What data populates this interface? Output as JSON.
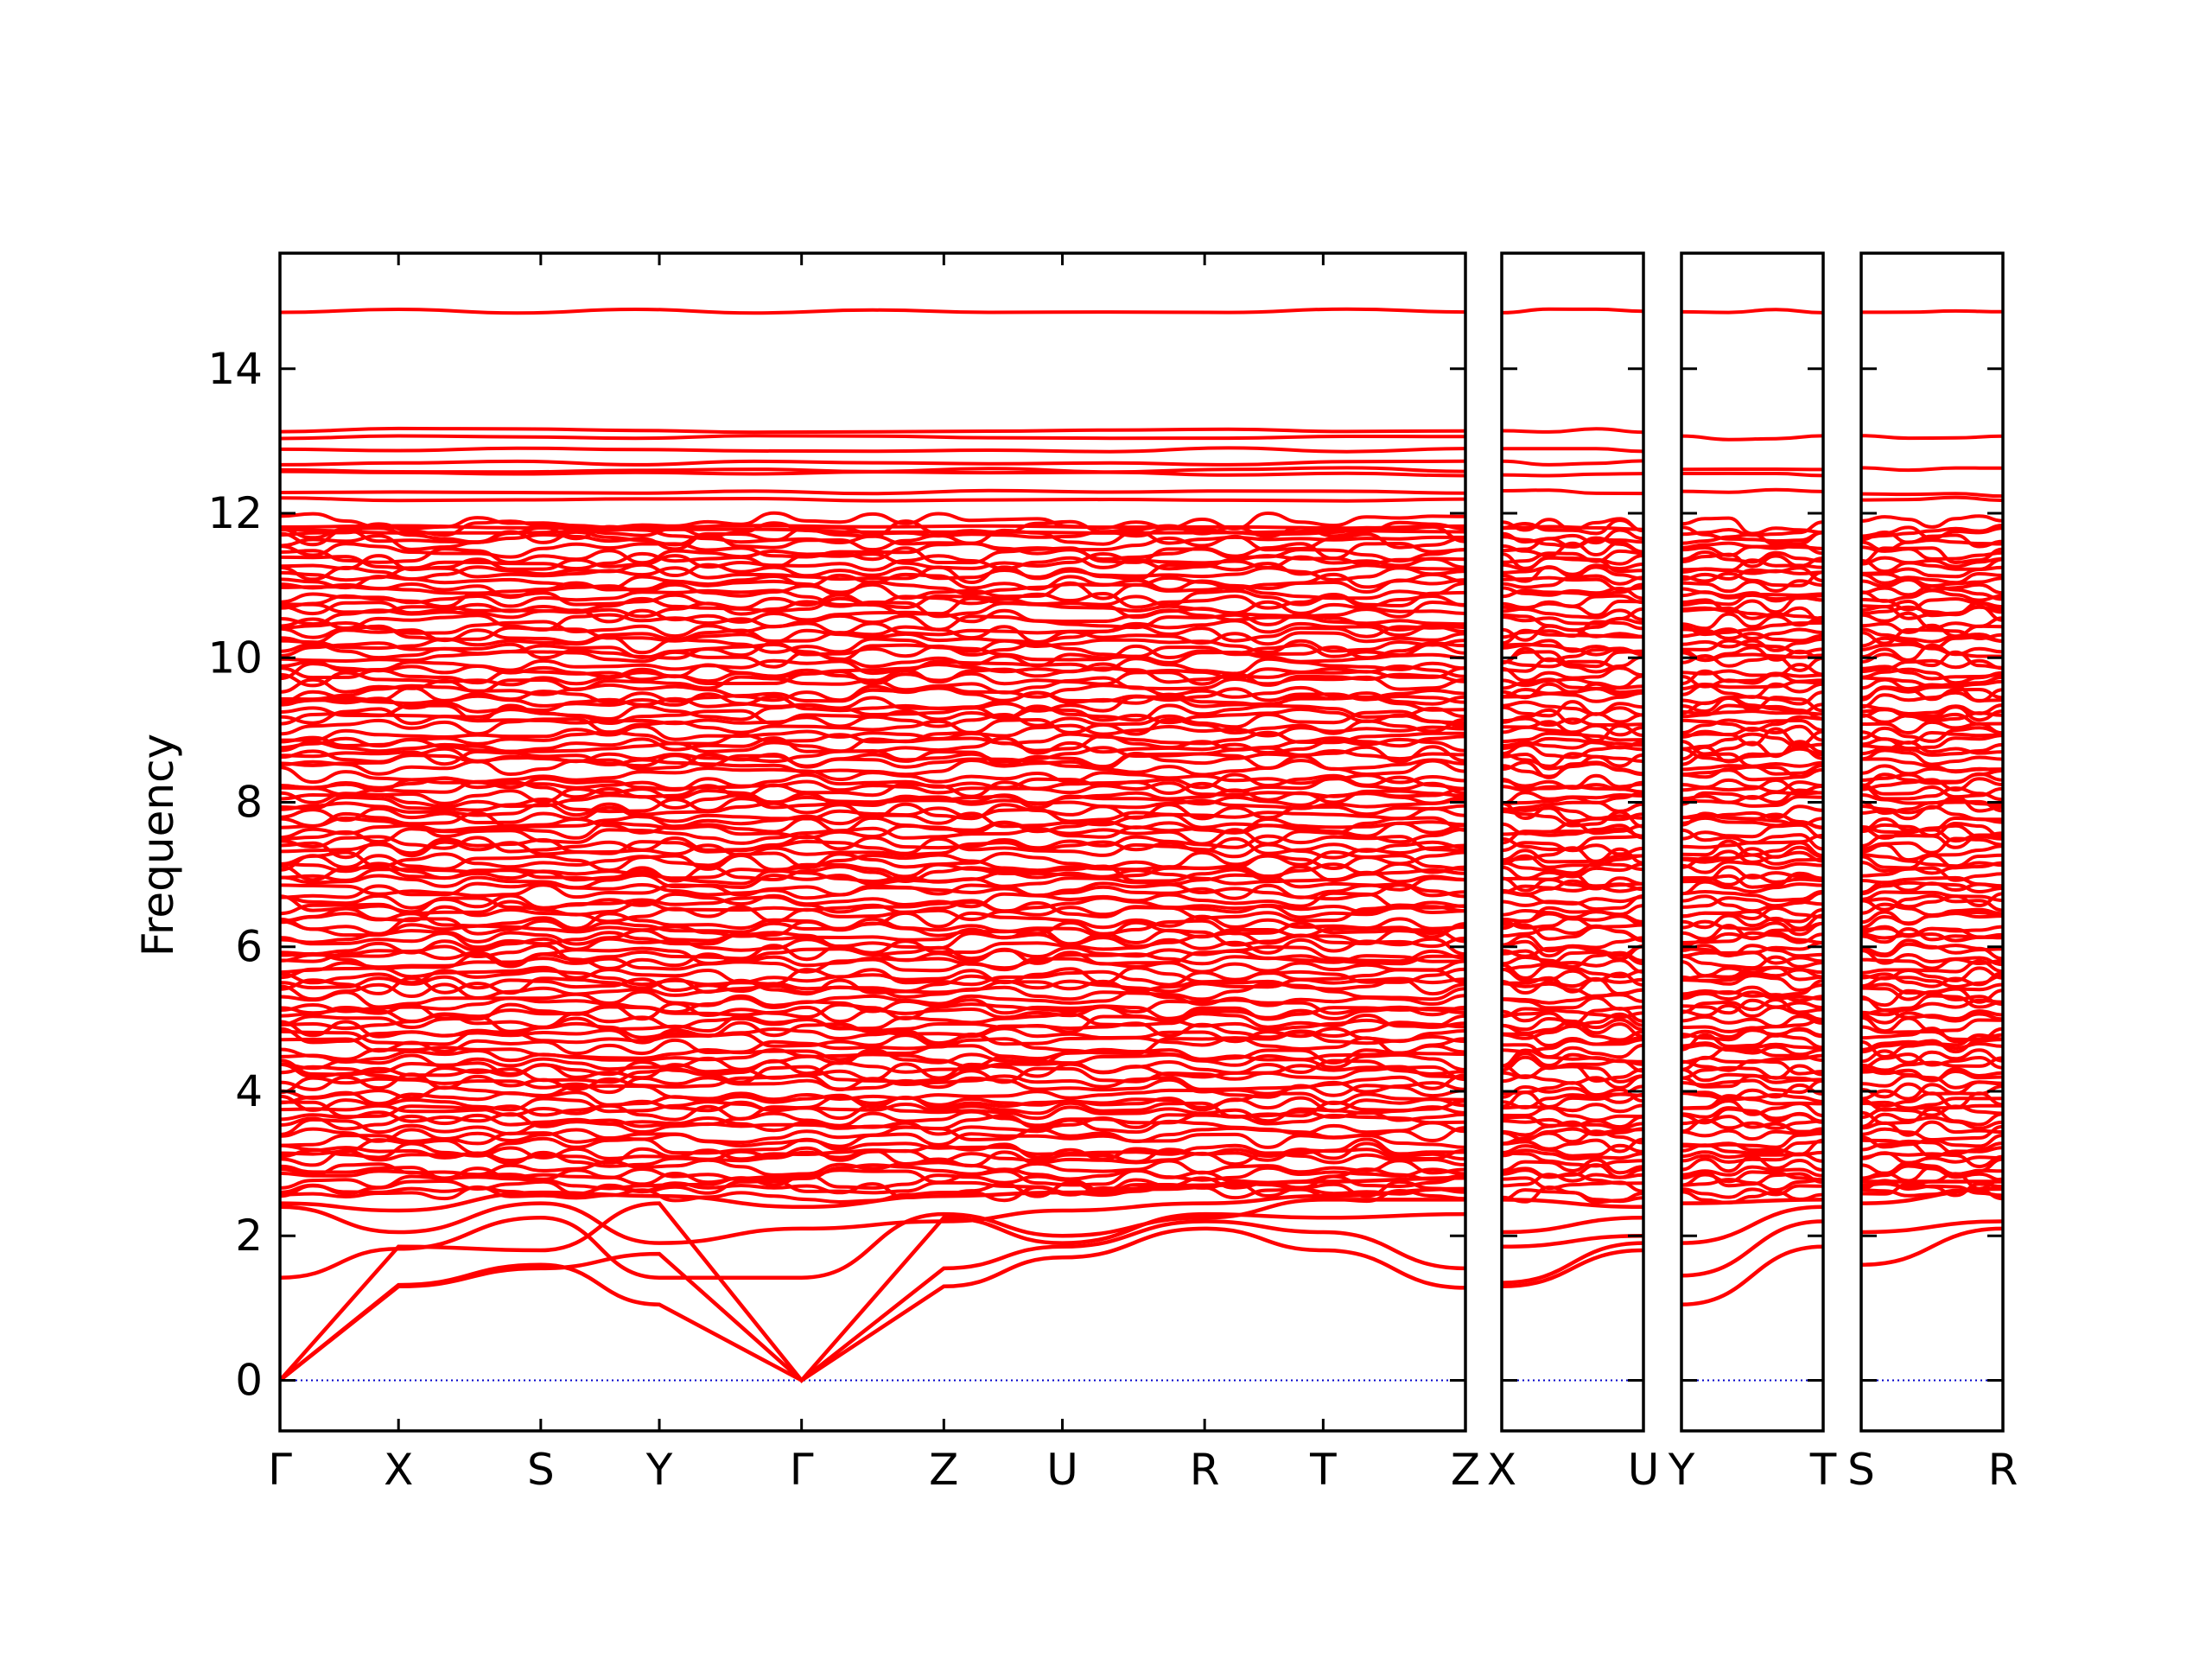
{
  "chart_data": {
    "type": "line",
    "ylabel": "Frequency",
    "ylim": [
      -0.7,
      15.6
    ],
    "yticks": [
      0,
      2,
      4,
      6,
      8,
      10,
      12,
      14
    ],
    "line_color": "#ff0000",
    "zero_line_color": "#0000cc",
    "grid": false,
    "panels": [
      {
        "id": "main",
        "labels": [
          "Γ",
          "X",
          "S",
          "Y",
          "Γ",
          "Z",
          "U",
          "R",
          "T",
          "Z"
        ],
        "special_branches": [
          {
            "name": "acoustic-1",
            "values": [
              0,
              1.3,
              1.55,
              1.75,
              0,
              1.3,
              1.7,
              2.1,
              1.8,
              1.28
            ]
          },
          {
            "name": "acoustic-2",
            "values": [
              0,
              1.32,
              1.6,
              1.05,
              0,
              1.55,
              1.85,
              2.2,
              2.05,
              1.55
            ]
          },
          {
            "name": "acoustic-3",
            "values": [
              0,
              1.85,
              1.8,
              2.45,
              0,
              2.25,
              1.9,
              2.3,
              2.25,
              2.3
            ]
          },
          {
            "name": "optic-low-1",
            "values": [
              1.42,
              1.82,
              2.25,
              1.42,
              1.42,
              2.3,
              2.0,
              2.25,
              2.5,
              2.5
            ]
          },
          {
            "name": "optic-low-2",
            "values": [
              2.4,
              2.05,
              2.45,
              1.9,
              2.1,
              2.2,
              2.35,
              2.45,
              2.55,
              2.65
            ]
          },
          {
            "name": "optic-low-3",
            "values": [
              2.45,
              2.35,
              2.6,
              2.55,
              2.4,
              2.55,
              2.6,
              2.7,
              2.75,
              2.8
            ]
          }
        ],
        "flat_bands": [
          14.8,
          13.15,
          13.05,
          12.88,
          12.7,
          12.6,
          12.55,
          12.3,
          12.2,
          11.8,
          11.75
        ]
      },
      {
        "id": "X-U",
        "labels": [
          "X",
          "U"
        ],
        "special_branches": [
          {
            "name": "b1",
            "values": [
              1.3,
              1.8
            ]
          },
          {
            "name": "b2",
            "values": [
              1.35,
              1.9
            ]
          },
          {
            "name": "b3",
            "values": [
              1.85,
              2.0
            ]
          },
          {
            "name": "b4",
            "values": [
              2.05,
              2.25
            ]
          },
          {
            "name": "b5",
            "values": [
              2.5,
              2.4
            ]
          }
        ],
        "flat_bands": [
          14.8,
          13.15,
          12.88,
          12.7,
          12.55,
          12.3,
          11.8
        ]
      },
      {
        "id": "Y-T",
        "labels": [
          "Y",
          "T"
        ],
        "special_branches": [
          {
            "name": "b1",
            "values": [
              1.05,
              1.85
            ]
          },
          {
            "name": "b2",
            "values": [
              1.45,
              2.2
            ]
          },
          {
            "name": "b3",
            "values": [
              1.9,
              2.4
            ]
          },
          {
            "name": "b4",
            "values": [
              2.45,
              2.5
            ]
          }
        ],
        "flat_bands": [
          14.8,
          13.05,
          12.6,
          12.55,
          12.3
        ]
      },
      {
        "id": "S-R",
        "labels": [
          "S",
          "R"
        ],
        "special_branches": [
          {
            "name": "b1",
            "values": [
              1.6,
              2.1
            ]
          },
          {
            "name": "b2",
            "values": [
              2.05,
              2.2
            ]
          },
          {
            "name": "b3",
            "values": [
              2.45,
              2.65
            ]
          },
          {
            "name": "b4",
            "values": [
              2.75,
              2.75
            ]
          }
        ],
        "flat_bands": [
          14.8,
          13.05,
          12.6,
          12.25,
          12.2
        ]
      }
    ],
    "dense_region": {
      "min": 2.5,
      "max": 11.9,
      "bands_per_panel": 130
    }
  }
}
